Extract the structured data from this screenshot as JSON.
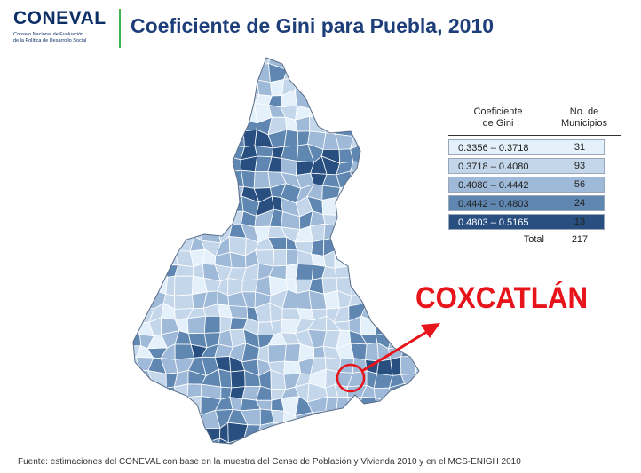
{
  "header": {
    "logo_text": "CONEVAL",
    "logo_subtitle_line1": "Consejo Nacional de Evaluación",
    "logo_subtitle_line2": "de la Política de Desarrollo Social",
    "title": "Coeficiente de Gini para Puebla, 2010"
  },
  "legend": {
    "column_coefficient_line1": "Coeficiente",
    "column_coefficient_line2": "de Gini",
    "column_count_line1": "No. de",
    "column_count_line2": "Municipios",
    "classes": [
      {
        "range": "0.3356 – 0.3718",
        "count": "31",
        "color": "#e4f1fa"
      },
      {
        "range": "0.3718 – 0.4080",
        "count": "93",
        "color": "#c4d6ea"
      },
      {
        "range": "0.4080 – 0.4442",
        "count": "56",
        "color": "#9fb9d8"
      },
      {
        "range": "0.4442 – 0.4803",
        "count": "24",
        "color": "#5f87b1"
      },
      {
        "range": "0.4803 – 0.5165",
        "count": "13",
        "color": "#284f80"
      }
    ],
    "total_label": "Total",
    "total_value": "217"
  },
  "callout": {
    "label": "COXCATLÁN",
    "color": "#e8141b"
  },
  "footer": {
    "source": "Fuente: estimaciones del CONEVAL con base en la muestra del Censo de Población y Vivienda 2010 y en el MCS-ENIGH 2010"
  },
  "colors": {
    "title_blue": "#1d3e78",
    "accent_green": "#3db54a",
    "border": "#ffffff"
  }
}
